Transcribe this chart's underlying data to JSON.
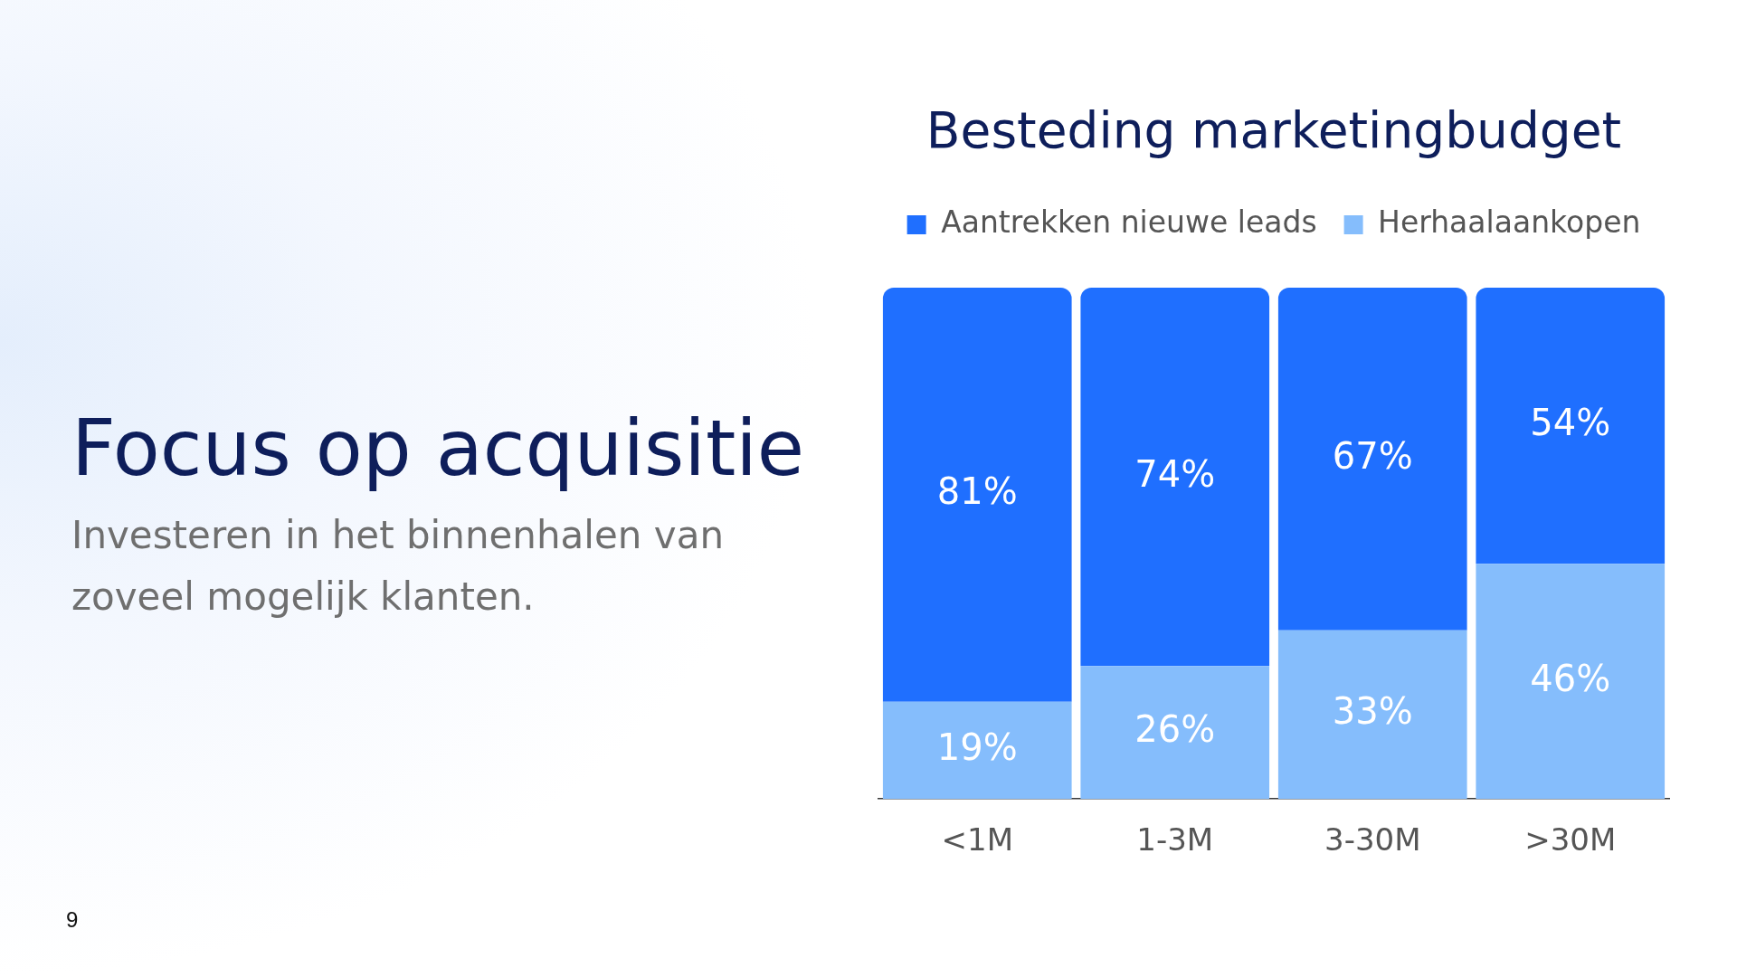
{
  "chart_data": {
    "type": "bar",
    "title": "Besteding marketingbudget",
    "categories": [
      "<1M",
      "1-3M",
      "3-30M",
      ">30M"
    ],
    "series": [
      {
        "name": "Herhaalaankopen",
        "color": "#85bdfc",
        "values": [
          19,
          26,
          33,
          46
        ],
        "value_labels": [
          "19%",
          "26%",
          "33%",
          "46%"
        ]
      },
      {
        "name": "Aantrekken nieuwe leads",
        "color": "#1f6fff",
        "values": [
          81,
          74,
          67,
          54
        ],
        "value_labels": [
          "81%",
          "74%",
          "67%",
          "54%"
        ]
      }
    ],
    "stacked": true,
    "legend": "top",
    "annotations": [
      "Focus op acquisitie",
      "Investeren in het binnenhalen van zoveel mogelijk klanten.",
      "9"
    ]
  }
}
